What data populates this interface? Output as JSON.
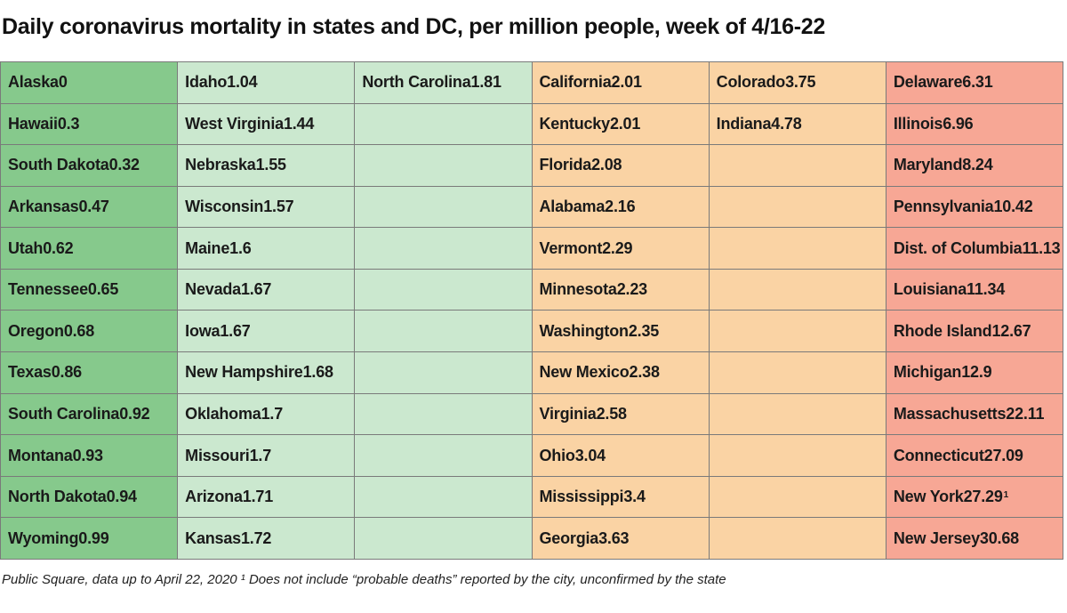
{
  "title": "Daily coronavirus mortality in states and DC, per million people, week of 4/16-22",
  "footnote": "Public Square, data up to April 22, 2020 ¹ Does not include “probable deaths” reported by the city, unconfirmed by the state",
  "colors": {
    "dark_green": "#86c98c",
    "light_green": "#cbe8cf",
    "light_orange": "#fad3a4",
    "salmon": "#f7a795",
    "grid_line": "#7a7a7a"
  },
  "chart_data": {
    "type": "table",
    "title": "Daily coronavirus mortality in states and DC, per million people, week of 4/16-22",
    "columns": [
      {
        "color": "dark_green",
        "cells": [
          {
            "name": "Alaska",
            "value": "0"
          },
          {
            "name": "Hawaii",
            "value": "0.3"
          },
          {
            "name": "South Dakota",
            "value": "0.32"
          },
          {
            "name": "Arkansas",
            "value": "0.47"
          },
          {
            "name": "Utah",
            "value": "0.62"
          },
          {
            "name": "Tennessee",
            "value": "0.65"
          },
          {
            "name": "Oregon",
            "value": "0.68"
          },
          {
            "name": "Texas",
            "value": "0.86"
          },
          {
            "name": "South Carolina",
            "value": "0.92"
          },
          {
            "name": "Montana",
            "value": "0.93"
          },
          {
            "name": "North Dakota",
            "value": "0.94"
          },
          {
            "name": "Wyoming",
            "value": "0.99"
          }
        ]
      },
      {
        "color": "light_green",
        "cells": [
          {
            "name": "Idaho",
            "value": "1.04"
          },
          {
            "name": "West Virginia",
            "value": "1.44"
          },
          {
            "name": "Nebraska",
            "value": "1.55"
          },
          {
            "name": "Wisconsin",
            "value": "1.57"
          },
          {
            "name": "Maine",
            "value": "1.6"
          },
          {
            "name": "Nevada",
            "value": "1.67"
          },
          {
            "name": "Iowa",
            "value": "1.67"
          },
          {
            "name": "New Hampshire",
            "value": "1.68"
          },
          {
            "name": "Oklahoma",
            "value": "1.7"
          },
          {
            "name": "Missouri",
            "value": "1.7"
          },
          {
            "name": "Arizona",
            "value": "1.71"
          },
          {
            "name": "Kansas",
            "value": "1.72"
          }
        ]
      },
      {
        "color": "light_green",
        "cells": [
          {
            "name": "North Carolina",
            "value": "1.81"
          }
        ]
      },
      {
        "color": "light_orange",
        "cells": [
          {
            "name": "California",
            "value": "2.01"
          },
          {
            "name": "Kentucky",
            "value": "2.01"
          },
          {
            "name": "Florida",
            "value": "2.08"
          },
          {
            "name": "Alabama",
            "value": "2.16"
          },
          {
            "name": "Vermont",
            "value": "2.29"
          },
          {
            "name": "Minnesota",
            "value": "2.23"
          },
          {
            "name": "Washington",
            "value": "2.35"
          },
          {
            "name": "New Mexico",
            "value": "2.38"
          },
          {
            "name": "Virginia",
            "value": "2.58"
          },
          {
            "name": "Ohio",
            "value": "3.04"
          },
          {
            "name": "Mississippi",
            "value": "3.4"
          },
          {
            "name": "Georgia",
            "value": "3.63"
          }
        ]
      },
      {
        "color": "light_orange",
        "cells": [
          {
            "name": "Colorado",
            "value": "3.75"
          },
          {
            "name": "Indiana",
            "value": "4.78"
          }
        ]
      },
      {
        "color": "salmon",
        "cells": [
          {
            "name": "Delaware",
            "value": "6.31"
          },
          {
            "name": "Illinois",
            "value": "6.96"
          },
          {
            "name": "Maryland",
            "value": "8.24"
          },
          {
            "name": "Pennsylvania",
            "value": "10.42"
          },
          {
            "name": "Dist. of Columbia",
            "value": "11.13"
          },
          {
            "name": "Louisiana",
            "value": "11.34"
          },
          {
            "name": "Rhode Island",
            "value": "12.67"
          },
          {
            "name": "Michigan",
            "value": "12.9"
          },
          {
            "name": "Massachusetts",
            "value": "22.11"
          },
          {
            "name": "Connecticut",
            "value": "27.09"
          },
          {
            "name": "New York",
            "value": "27.29",
            "sup": "1"
          },
          {
            "name": "New Jersey",
            "value": "30.68"
          }
        ]
      }
    ]
  }
}
